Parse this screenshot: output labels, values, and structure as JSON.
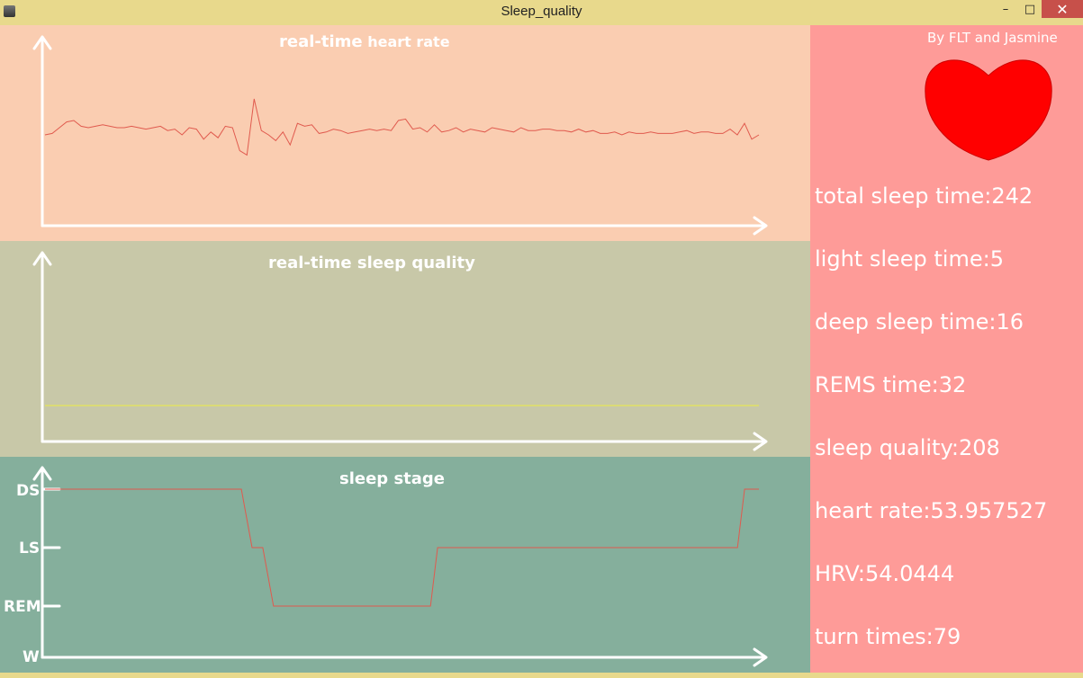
{
  "window": {
    "title": "Sleep_quality",
    "minimize": "–",
    "maximize": "□",
    "close": "✕"
  },
  "colors": {
    "hr_bg": "#facdb1",
    "sq_bg": "#c8c8a8",
    "ss_bg": "#85af9c",
    "side_bg": "#fe9b98",
    "heart": "#ff0000",
    "hr_line": "#e05a4e",
    "sq_line": "#eeee44",
    "ss_line": "#e05a4e"
  },
  "hr_chart": {
    "title_a": "real-time",
    "title_b": "heart rate"
  },
  "sq_chart": {
    "title": "real-time sleep quality"
  },
  "ss_chart": {
    "title": "sleep stage",
    "labels": {
      "ds": "DS",
      "ls": "LS",
      "rem": "REM",
      "w": "W"
    }
  },
  "side": {
    "credit": "By FLT and Jasmine",
    "stats": {
      "total": "total sleep time:242",
      "light": "light sleep time:5",
      "deep": "deep sleep time:16",
      "rems": "REMS time:32",
      "quality": "sleep quality:208",
      "hr": "heart rate:53.957527",
      "hrv": "HRV:54.0444",
      "turn": "turn times:79"
    }
  },
  "chart_data": [
    {
      "type": "line",
      "title": "real-time heart rate",
      "x": [
        0,
        1,
        2,
        3,
        4,
        5,
        6,
        7,
        8,
        9,
        10,
        11,
        12,
        13,
        14,
        15,
        16,
        17,
        18,
        19,
        20,
        21,
        22,
        23,
        24,
        25,
        26,
        27,
        28,
        29,
        30,
        31,
        32,
        33,
        34,
        35,
        36,
        37,
        38,
        39,
        40,
        41,
        42,
        43,
        44,
        45,
        46,
        47,
        48,
        49,
        50,
        51,
        52,
        53,
        54,
        55,
        56,
        57,
        58,
        59,
        60,
        61,
        62,
        63,
        64,
        65,
        66,
        67,
        68,
        69,
        70,
        71,
        72,
        73,
        74,
        75,
        76,
        77,
        78,
        79,
        80,
        81,
        82,
        83,
        84,
        85,
        86,
        87,
        88,
        89,
        90,
        91,
        92,
        93,
        94,
        95,
        96,
        97,
        98,
        99
      ],
      "series": [
        {
          "values": [
            0,
            1,
            5,
            9,
            10,
            6,
            5,
            6,
            7,
            6,
            5,
            5,
            6,
            5,
            4,
            5,
            6,
            3,
            4,
            0,
            5,
            4,
            -3,
            2,
            -2,
            6,
            5,
            -11,
            -14,
            25,
            3,
            0,
            -4,
            2,
            -7,
            8,
            6,
            7,
            1,
            2,
            4,
            3,
            1,
            2,
            3,
            4,
            3,
            4,
            3,
            10,
            11,
            4,
            5,
            2,
            7,
            2,
            3,
            5,
            2,
            4,
            3,
            2,
            5,
            4,
            3,
            2,
            5,
            3,
            3,
            4,
            4,
            3,
            3,
            2,
            4,
            2,
            3,
            1,
            1,
            2,
            0,
            2,
            1,
            1,
            2,
            1,
            1,
            1,
            2,
            3,
            1,
            2,
            2,
            1,
            1,
            4,
            0,
            8,
            -3,
            0
          ]
        }
      ],
      "ylim": [
        -40,
        40
      ]
    },
    {
      "type": "line",
      "title": "real-time sleep quality",
      "series": [
        {
          "values": [
            0,
            0
          ]
        }
      ],
      "ylim": [
        0,
        1
      ]
    },
    {
      "type": "line",
      "title": "sleep stage",
      "yticks": [
        "W",
        "REM",
        "LS",
        "DS"
      ],
      "series": [
        {
          "stage_sequence": [
            {
              "x": 0,
              "stage": 3
            },
            {
              "x": 27.5,
              "stage": 3
            },
            {
              "x": 29,
              "stage": 2
            },
            {
              "x": 30.5,
              "stage": 2
            },
            {
              "x": 32,
              "stage": 1
            },
            {
              "x": 54,
              "stage": 1
            },
            {
              "x": 55,
              "stage": 2
            },
            {
              "x": 97,
              "stage": 2
            },
            {
              "x": 98,
              "stage": 3
            },
            {
              "x": 100,
              "stage": 3
            }
          ]
        }
      ]
    }
  ]
}
